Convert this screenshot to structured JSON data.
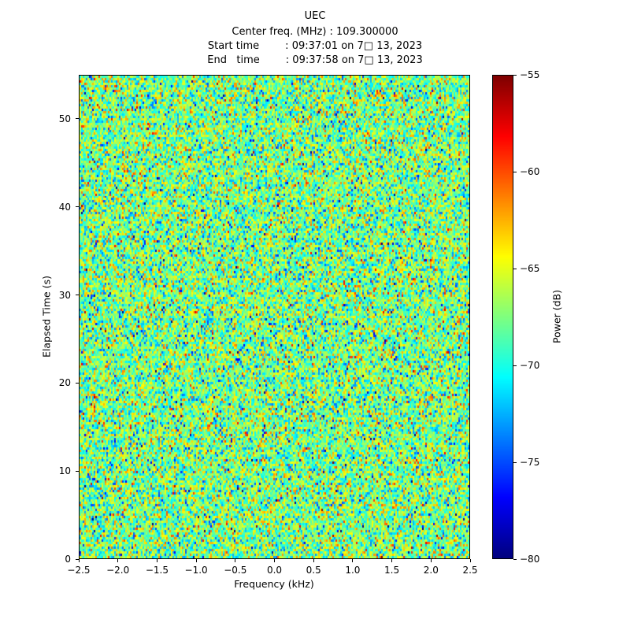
{
  "header": {
    "title": "UEC",
    "center_freq_line": "Center freq. (MHz) : 109.300000",
    "start_time_line": "Start time        : 09:37:01 on 7□ 13, 2023",
    "end_time_line": "End   time        : 09:37:58 on 7□ 13, 2023"
  },
  "chart_data": {
    "type": "heatmap",
    "title": "UEC",
    "subtitle_lines": [
      "Center freq. (MHz) : 109.300000",
      "Start time : 09:37:01 on 7□ 13, 2023",
      "End time : 09:37:58 on 7□ 13, 2023"
    ],
    "xlabel": "Frequency (kHz)",
    "ylabel": "Elapsed Time (s)",
    "x_range": [
      -2.5,
      2.5
    ],
    "y_range": [
      0,
      55
    ],
    "x_ticks": {
      "values": [
        -2.5,
        -2.0,
        -1.5,
        -1.0,
        -0.5,
        0.0,
        0.5,
        1.0,
        1.5,
        2.0,
        2.5
      ],
      "labels": [
        "−2.5",
        "−2.0",
        "−1.5",
        "−1.0",
        "−0.5",
        "0.0",
        "0.5",
        "1.0",
        "1.5",
        "2.0",
        "2.5"
      ]
    },
    "y_ticks": {
      "values": [
        0,
        10,
        20,
        30,
        40,
        50
      ],
      "labels": [
        "0",
        "10",
        "20",
        "30",
        "40",
        "50"
      ]
    },
    "colorbar": {
      "label": "Power (dB)",
      "colormap": "jet",
      "clim": [
        -80,
        -55
      ],
      "tick_values": [
        -55,
        -60,
        -65,
        -70,
        -75,
        -80
      ],
      "tick_labels": [
        "−55",
        "−60",
        "−65",
        "−70",
        "−75",
        "−80"
      ]
    },
    "noise": {
      "description": "broadband noise floor, no visible signal",
      "distribution": "gaussian",
      "mean_db": -67.5,
      "std_db": 3.3,
      "outlier_fraction": 0.02,
      "outlier_extra_db": [
        4,
        10
      ],
      "seed": 42
    },
    "grid": {
      "nx": 248,
      "ny": 205
    }
  }
}
